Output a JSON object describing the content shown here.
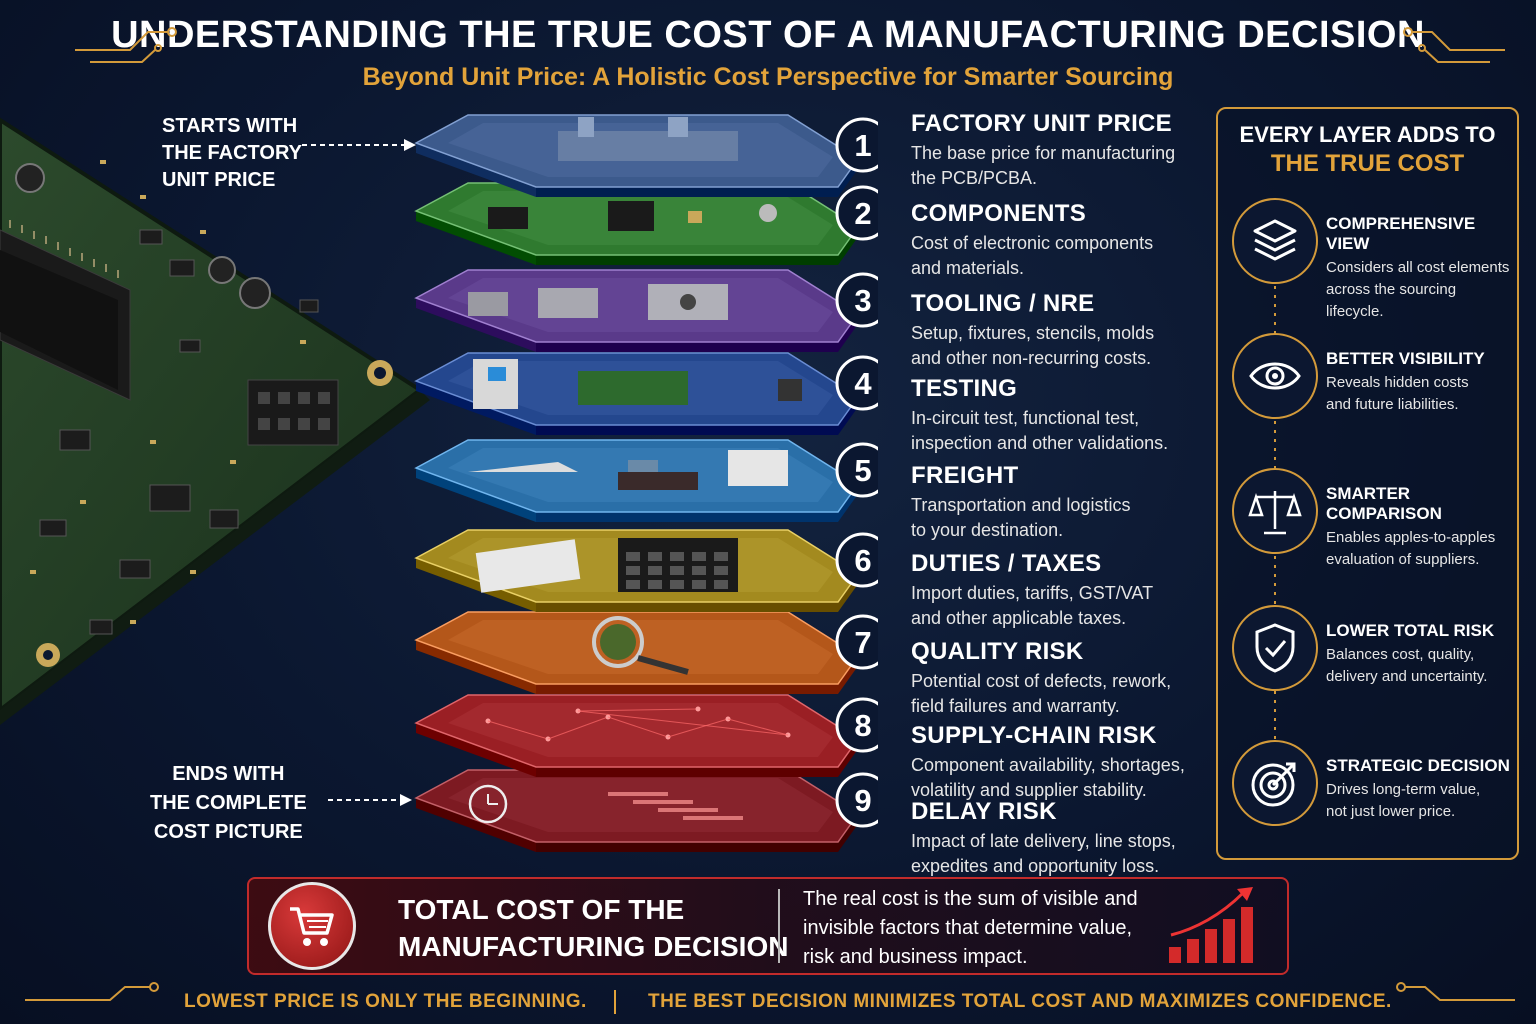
{
  "header": {
    "title": "UNDERSTANDING THE TRUE COST OF A MANUFACTURING DECISION",
    "subtitle": "Beyond Unit Price: A Holistic Cost Perspective for Smarter Sourcing"
  },
  "side_labels": {
    "start": [
      "STARTS WITH",
      "THE FACTORY",
      "UNIT PRICE"
    ],
    "end": [
      "ENDS WITH",
      "THE COMPLETE",
      "COST PICTURE"
    ]
  },
  "layers": [
    {
      "number": "1",
      "title": "FACTORY UNIT PRICE",
      "desc": [
        "The base price for manufacturing",
        "the PCB/PCBA."
      ],
      "color": "#3c5a8c",
      "icon": "factory-icon"
    },
    {
      "number": "2",
      "title": "COMPONENTS",
      "desc": [
        "Cost of electronic components",
        "and materials."
      ],
      "color": "#2f7a2f",
      "icon": "chip-icon"
    },
    {
      "number": "3",
      "title": "TOOLING / NRE",
      "desc": [
        "Setup, fixtures, stencils, molds",
        "and other non-recurring costs."
      ],
      "color": "#5a3a8a",
      "icon": "fixture-icon"
    },
    {
      "number": "4",
      "title": "TESTING",
      "desc": [
        "In-circuit test, functional test,",
        "inspection and other validations."
      ],
      "color": "#24478e",
      "icon": "test-equipment-icon"
    },
    {
      "number": "5",
      "title": "FREIGHT",
      "desc": [
        "Transportation and logistics",
        "to your destination."
      ],
      "color": "#2a6fa8",
      "icon": "freight-icon"
    },
    {
      "number": "6",
      "title": "DUTIES / TAXES",
      "desc": [
        "Import duties, tariffs, GST/VAT",
        "and other applicable taxes."
      ],
      "color": "#a38a1f",
      "icon": "calculator-icon"
    },
    {
      "number": "7",
      "title": "QUALITY RISK",
      "desc": [
        "Potential cost of defects, rework,",
        "field failures and warranty."
      ],
      "color": "#b4571a",
      "icon": "magnifier-icon"
    },
    {
      "number": "8",
      "title": "SUPPLY-CHAIN RISK",
      "desc": [
        "Component availability, shortages,",
        "volatility and supplier stability."
      ],
      "color": "#9a1f24",
      "icon": "network-icon"
    },
    {
      "number": "9",
      "title": "DELAY RISK",
      "desc": [
        "Impact of late delivery, line stops,",
        "expedites and opportunity loss."
      ],
      "color": "#7d1a22",
      "icon": "clock-icon"
    }
  ],
  "panel": {
    "heading_line1": "EVERY LAYER ADDS TO",
    "heading_line2": "THE TRUE COST",
    "benefits": [
      {
        "title": "COMPREHENSIVE VIEW",
        "desc": [
          "Considers all cost elements",
          "across the sourcing lifecycle."
        ],
        "icon": "layers-icon"
      },
      {
        "title": "BETTER VISIBILITY",
        "desc": [
          "Reveals hidden costs",
          "and future liabilities."
        ],
        "icon": "eye-icon"
      },
      {
        "title": "SMARTER COMPARISON",
        "desc": [
          "Enables apples-to-apples",
          "evaluation of suppliers."
        ],
        "icon": "scales-icon"
      },
      {
        "title": "LOWER TOTAL RISK",
        "desc": [
          "Balances cost, quality,",
          "delivery and uncertainty."
        ],
        "icon": "shield-check-icon"
      },
      {
        "title": "STRATEGIC DECISION",
        "desc": [
          "Drives long-term value,",
          "not just lower price."
        ],
        "icon": "target-icon"
      }
    ]
  },
  "total": {
    "title": [
      "TOTAL COST OF THE",
      "MANUFACTURING DECISION"
    ],
    "desc": [
      "The real cost is the sum of visible and",
      "invisible factors that determine value,",
      "risk and business impact."
    ],
    "icon": "cart-icon",
    "chart_icon": "rising-bars-icon"
  },
  "footer": {
    "left": "LOWEST PRICE IS ONLY THE BEGINNING.",
    "right": "THE BEST DECISION MINIMIZES TOTAL COST AND MAXIMIZES CONFIDENCE."
  },
  "colors": {
    "accent_gold": "#e2a33a",
    "background": "#0b1730",
    "alert_red": "#c22b2b"
  }
}
